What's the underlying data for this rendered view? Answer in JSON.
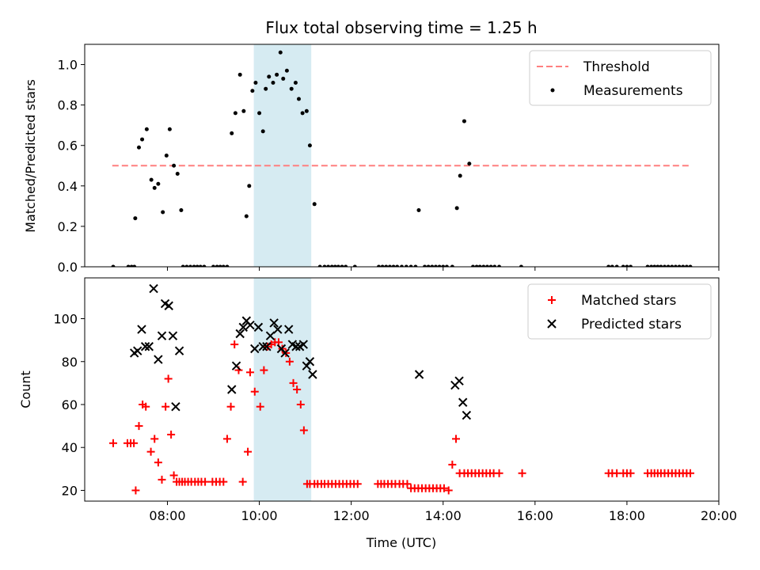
{
  "chart_data": {
    "type": "scatter",
    "title": "Flux total observing time = 1.25 h",
    "xlabel": "Time (UTC)",
    "x_ticks": [
      "08:00",
      "10:00",
      "12:00",
      "14:00",
      "16:00",
      "18:00",
      "20:00"
    ],
    "x_tick_hours": [
      8,
      10,
      12,
      14,
      16,
      18,
      20
    ],
    "xlim_hours": [
      6.2,
      20.0
    ],
    "highlight_span_hours": [
      9.88,
      11.13
    ],
    "highlight_color": "#add8e6",
    "panels": [
      {
        "ylabel": "Matched/Predicted stars",
        "ylim": [
          0,
          1.1
        ],
        "y_ticks": [
          "0.0",
          "0.2",
          "0.4",
          "0.6",
          "0.8",
          "1.0"
        ],
        "y_tick_values": [
          0,
          0.2,
          0.4,
          0.6,
          0.8,
          1.0
        ],
        "legend": {
          "placement": "top-right",
          "entries": [
            "Threshold",
            "Measurements"
          ]
        },
        "threshold": {
          "name": "Threshold",
          "value": 0.5,
          "x_range_hours": [
            6.8,
            19.4
          ],
          "color": "#ff7f7f",
          "style": "dashed"
        },
        "series": [
          {
            "name": "Measurements",
            "color": "#000000",
            "marker": "dot",
            "x": [
              6.82,
              7.15,
              7.22,
              7.28,
              7.3,
              7.38,
              7.45,
              7.55,
              7.65,
              7.72,
              7.8,
              7.9,
              7.98,
              8.05,
              8.14,
              8.22,
              8.3,
              8.34,
              8.42,
              8.5,
              8.58,
              8.65,
              8.72,
              8.8,
              9.0,
              9.08,
              9.15,
              9.22,
              9.3,
              9.4,
              9.48,
              9.58,
              9.66,
              9.72,
              9.78,
              9.85,
              9.92,
              10.0,
              10.08,
              10.14,
              10.21,
              10.3,
              10.38,
              10.46,
              10.52,
              10.6,
              10.7,
              10.79,
              10.86,
              10.94,
              11.03,
              11.1,
              11.2,
              11.32,
              11.42,
              11.5,
              11.58,
              11.65,
              11.72,
              11.8,
              11.88,
              12.08,
              12.6,
              12.68,
              12.76,
              12.84,
              12.92,
              13.0,
              13.1,
              13.2,
              13.3,
              13.4,
              13.47,
              13.6,
              13.68,
              13.76,
              13.84,
              13.92,
              14.0,
              14.08,
              14.2,
              14.3,
              14.37,
              14.46,
              14.57,
              14.65,
              14.73,
              14.8,
              14.88,
              14.96,
              15.04,
              15.12,
              15.22,
              15.7,
              17.6,
              17.68,
              17.78,
              17.92,
              18.0,
              18.08,
              18.45,
              18.53,
              18.6,
              18.67,
              18.74,
              18.82,
              18.9,
              18.98,
              19.06,
              19.14,
              19.22,
              19.3,
              19.38
            ],
            "y": [
              0,
              0,
              0,
              0,
              0.24,
              0.59,
              0.63,
              0.68,
              0.43,
              0.39,
              0.41,
              0.27,
              0.55,
              0.68,
              0.5,
              0.46,
              0.28,
              0,
              0,
              0,
              0,
              0,
              0,
              0,
              0,
              0,
              0,
              0,
              0,
              0.66,
              0.76,
              0.95,
              0.77,
              0.25,
              0.4,
              0.87,
              0.91,
              0.76,
              0.67,
              0.88,
              0.94,
              0.91,
              0.95,
              1.06,
              0.93,
              0.97,
              0.88,
              0.91,
              0.83,
              0.76,
              0.77,
              0.6,
              0.31,
              0,
              0,
              0,
              0,
              0,
              0,
              0,
              0,
              0,
              0,
              0,
              0,
              0,
              0,
              0,
              0,
              0,
              0,
              0,
              0.28,
              0,
              0,
              0,
              0,
              0,
              0,
              0,
              0,
              0.29,
              0.45,
              0.72,
              0.51,
              0,
              0,
              0,
              0,
              0,
              0,
              0,
              0,
              0,
              0,
              0,
              0,
              0,
              0,
              0,
              0,
              0,
              0,
              0,
              0,
              0,
              0,
              0,
              0,
              0,
              0,
              0,
              0
            ]
          }
        ]
      },
      {
        "ylabel": "Count",
        "ylim": [
          15,
          119
        ],
        "y_ticks": [
          "20",
          "40",
          "60",
          "80",
          "100"
        ],
        "y_tick_values": [
          20,
          40,
          60,
          80,
          100
        ],
        "legend": {
          "placement": "top-right",
          "entries": [
            "Matched stars",
            "Predicted stars"
          ]
        },
        "series": [
          {
            "name": "Matched stars",
            "color": "#ff0000",
            "marker": "plus",
            "x": [
              6.82,
              7.13,
              7.2,
              7.27,
              7.31,
              7.38,
              7.46,
              7.53,
              7.64,
              7.72,
              7.8,
              7.88,
              7.96,
              8.02,
              8.08,
              8.14,
              8.2,
              8.26,
              8.32,
              8.38,
              8.45,
              8.52,
              8.6,
              8.67,
              8.74,
              8.82,
              8.98,
              9.06,
              9.14,
              9.22,
              9.3,
              9.38,
              9.46,
              9.55,
              9.64,
              9.75,
              9.8,
              9.9,
              10.02,
              10.1,
              10.18,
              10.26,
              10.34,
              10.42,
              10.5,
              10.58,
              10.66,
              10.74,
              10.82,
              10.9,
              10.97,
              11.04,
              11.1,
              11.2,
              11.27,
              11.35,
              11.42,
              11.5,
              11.58,
              11.66,
              11.74,
              11.82,
              11.9,
              11.98,
              12.06,
              12.14,
              12.58,
              12.65,
              12.72,
              12.8,
              12.88,
              12.96,
              13.05,
              13.13,
              13.22,
              13.3,
              13.38,
              13.46,
              13.54,
              13.62,
              13.7,
              13.78,
              13.86,
              13.94,
              14.02,
              14.12,
              14.2,
              14.28,
              14.36,
              14.46,
              14.54,
              14.62,
              14.7,
              14.78,
              14.86,
              14.94,
              15.02,
              15.1,
              15.22,
              15.72,
              17.6,
              17.68,
              17.78,
              17.92,
              18.0,
              18.08,
              18.45,
              18.53,
              18.6,
              18.67,
              18.74,
              18.82,
              18.9,
              18.98,
              19.06,
              19.14,
              19.22,
              19.3,
              19.38
            ],
            "y": [
              42,
              42,
              42,
              42,
              20,
              50,
              60,
              59,
              38,
              44,
              33,
              25,
              59,
              72,
              46,
              27,
              24,
              24,
              24,
              24,
              24,
              24,
              24,
              24,
              24,
              24,
              24,
              24,
              24,
              24,
              44,
              59,
              88,
              76,
              24,
              38,
              75,
              66,
              59,
              76,
              87,
              88,
              89,
              89,
              86,
              84,
              80,
              70,
              67,
              60,
              48,
              23,
              23,
              23,
              23,
              23,
              23,
              23,
              23,
              23,
              23,
              23,
              23,
              23,
              23,
              23,
              23,
              23,
              23,
              23,
              23,
              23,
              23,
              23,
              23,
              21,
              21,
              21,
              21,
              21,
              21,
              21,
              21,
              21,
              21,
              20,
              32,
              44,
              28,
              28,
              28,
              28,
              28,
              28,
              28,
              28,
              28,
              28,
              28,
              28,
              28,
              28,
              28,
              28,
              28,
              28,
              28,
              28,
              28,
              28,
              28,
              28,
              28,
              28,
              28,
              28,
              28,
              28,
              28
            ]
          },
          {
            "name": "Predicted stars",
            "color": "#000000",
            "marker": "cross",
            "x": [
              7.28,
              7.35,
              7.44,
              7.52,
              7.6,
              7.7,
              7.8,
              7.88,
              7.95,
              8.03,
              8.12,
              8.18,
              8.26,
              9.4,
              9.5,
              9.58,
              9.65,
              9.72,
              9.8,
              9.9,
              9.98,
              10.08,
              10.16,
              10.24,
              10.32,
              10.4,
              10.48,
              10.56,
              10.64,
              10.72,
              10.8,
              10.88,
              10.96,
              11.03,
              11.1,
              11.16,
              13.48,
              14.26,
              14.35,
              14.43,
              14.51
            ],
            "y": [
              84,
              85,
              95,
              87,
              87,
              114,
              81,
              92,
              107,
              106,
              92,
              59,
              85,
              67,
              78,
              93,
              96,
              99,
              97,
              86,
              96,
              87,
              87,
              92,
              98,
              95,
              86,
              84,
              95,
              88,
              87,
              87,
              88,
              78,
              80,
              74,
              74,
              69,
              71,
              61,
              55
            ]
          }
        ]
      }
    ]
  }
}
